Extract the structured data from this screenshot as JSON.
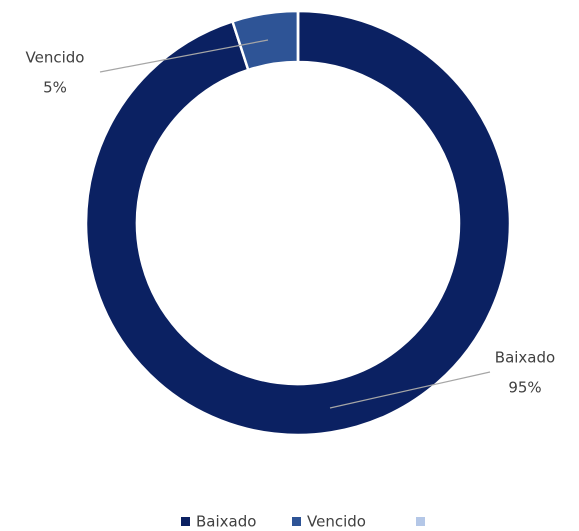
{
  "chart_data": {
    "type": "donut",
    "categories": [
      "Baixado",
      "Vencido",
      null
    ],
    "values": [
      95,
      5,
      0
    ],
    "value_labels": [
      "95%",
      "5%",
      null
    ],
    "colors": [
      "#0b2162",
      "#2e5496",
      "#b4c7e7"
    ],
    "legend": "bottom"
  }
}
